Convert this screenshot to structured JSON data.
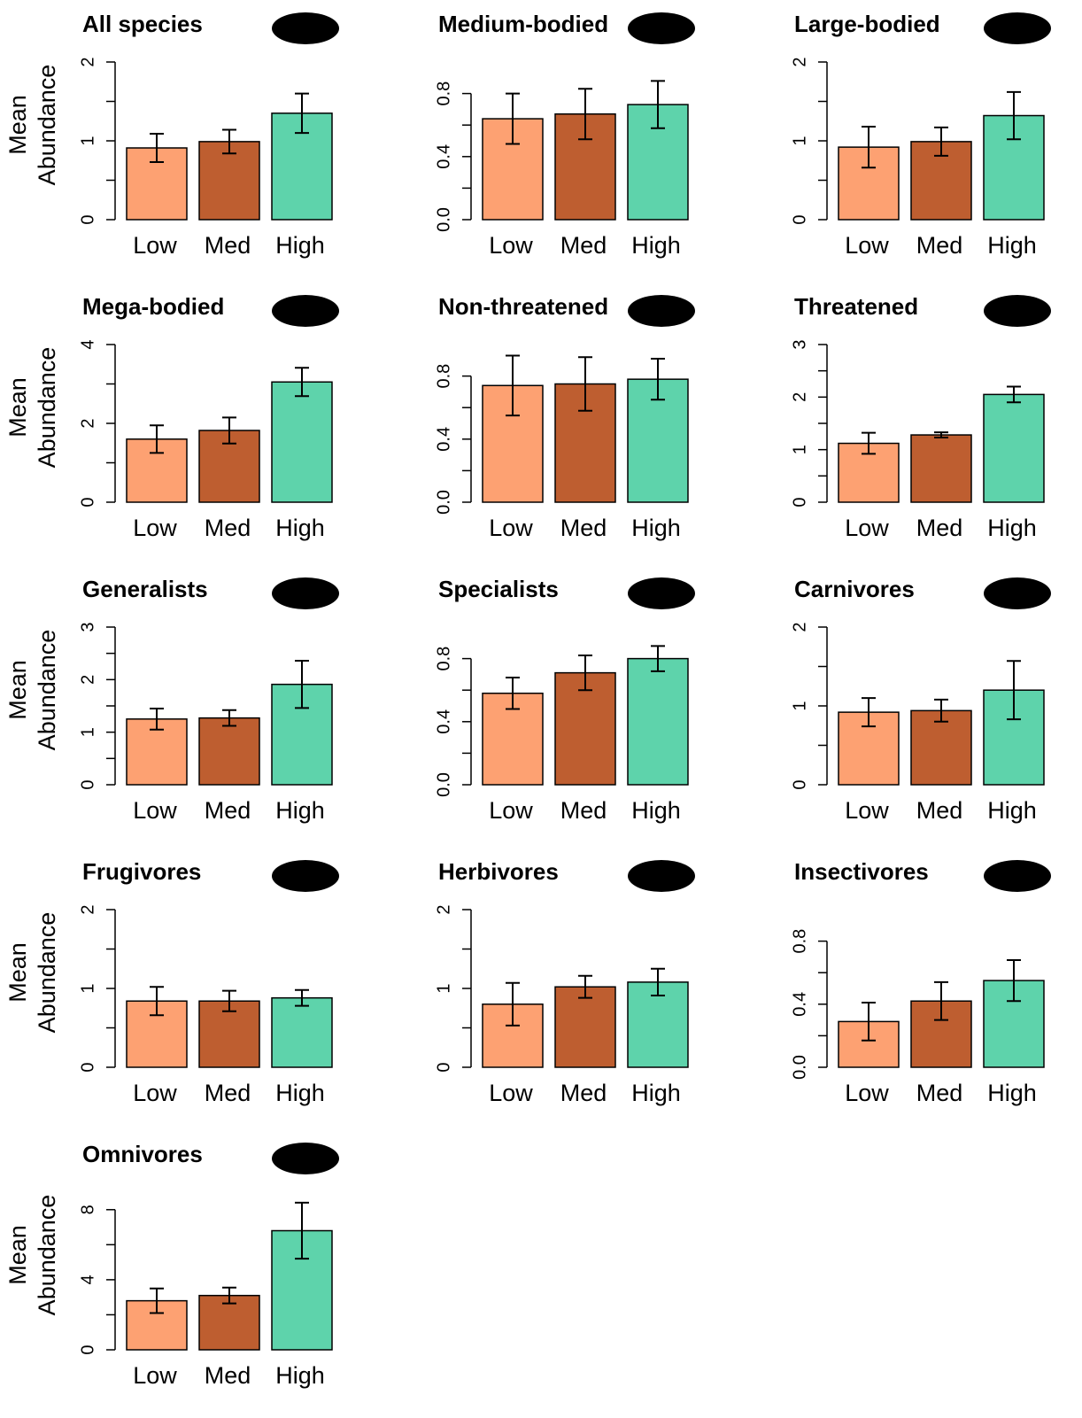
{
  "chart_data": [
    {
      "type": "bar",
      "title": "All species",
      "ylabel": [
        "Mean",
        "Abundance"
      ],
      "categories": [
        "Low",
        "Med",
        "High"
      ],
      "colors": [
        "#FDA172",
        "#BE5E30",
        "#5ED3AB"
      ],
      "values": [
        0.91,
        0.99,
        1.35
      ],
      "errors": [
        0.18,
        0.15,
        0.25
      ],
      "ylim": [
        0,
        2
      ],
      "yticks": [
        0,
        1,
        2
      ],
      "yminorticks": [
        0.5,
        1.5
      ]
    },
    {
      "type": "bar",
      "title": "Medium-bodied",
      "categories": [
        "Low",
        "Med",
        "High"
      ],
      "colors": [
        "#FDA172",
        "#BE5E30",
        "#5ED3AB"
      ],
      "values": [
        0.64,
        0.67,
        0.73
      ],
      "errors": [
        0.16,
        0.16,
        0.15
      ],
      "ylim": [
        0,
        1.0
      ],
      "yticks": [
        {
          "value": 0,
          "label": "0.0"
        },
        0.4,
        0.8
      ],
      "yminorticks": [
        0.2,
        0.6
      ]
    },
    {
      "type": "bar",
      "title": "Large-bodied",
      "categories": [
        "Low",
        "Med",
        "High"
      ],
      "colors": [
        "#FDA172",
        "#BE5E30",
        "#5ED3AB"
      ],
      "values": [
        0.92,
        0.99,
        1.32
      ],
      "errors": [
        0.26,
        0.18,
        0.3
      ],
      "ylim": [
        0,
        2
      ],
      "yticks": [
        0,
        1,
        2
      ],
      "yminorticks": [
        0.5,
        1.5
      ]
    },
    {
      "type": "bar",
      "title": "Mega-bodied",
      "ylabel": [
        "Mean",
        "Abundance"
      ],
      "categories": [
        "Low",
        "Med",
        "High"
      ],
      "colors": [
        "#FDA172",
        "#BE5E30",
        "#5ED3AB"
      ],
      "values": [
        1.6,
        1.82,
        3.05
      ],
      "errors": [
        0.35,
        0.33,
        0.36
      ],
      "ylim": [
        0,
        4
      ],
      "yticks": [
        0,
        2,
        4
      ],
      "yminorticks": [
        1,
        3
      ]
    },
    {
      "type": "bar",
      "title": "Non-threatened",
      "categories": [
        "Low",
        "Med",
        "High"
      ],
      "colors": [
        "#FDA172",
        "#BE5E30",
        "#5ED3AB"
      ],
      "values": [
        0.74,
        0.75,
        0.78
      ],
      "errors": [
        0.19,
        0.17,
        0.13
      ],
      "ylim": [
        0,
        1.0
      ],
      "yticks": [
        {
          "value": 0,
          "label": "0.0"
        },
        0.4,
        0.8
      ],
      "yminorticks": [
        0.2,
        0.6
      ]
    },
    {
      "type": "bar",
      "title": "Threatened",
      "categories": [
        "Low",
        "Med",
        "High"
      ],
      "colors": [
        "#FDA172",
        "#BE5E30",
        "#5ED3AB"
      ],
      "values": [
        1.12,
        1.28,
        2.05
      ],
      "errors": [
        0.2,
        0.05,
        0.15
      ],
      "ylim": [
        0,
        3
      ],
      "yticks": [
        0,
        1,
        2,
        3
      ],
      "yminorticks": [
        0.5,
        1.5,
        2.5
      ]
    },
    {
      "type": "bar",
      "title": "Generalists",
      "ylabel": [
        "Mean",
        "Abundance"
      ],
      "categories": [
        "Low",
        "Med",
        "High"
      ],
      "colors": [
        "#FDA172",
        "#BE5E30",
        "#5ED3AB"
      ],
      "values": [
        1.25,
        1.27,
        1.91
      ],
      "errors": [
        0.2,
        0.15,
        0.45
      ],
      "ylim": [
        0,
        3
      ],
      "yticks": [
        0,
        1,
        2,
        3
      ],
      "yminorticks": [
        0.5,
        1.5,
        2.5
      ]
    },
    {
      "type": "bar",
      "title": "Specialists",
      "categories": [
        "Low",
        "Med",
        "High"
      ],
      "colors": [
        "#FDA172",
        "#BE5E30",
        "#5ED3AB"
      ],
      "values": [
        0.58,
        0.71,
        0.8
      ],
      "errors": [
        0.1,
        0.11,
        0.08
      ],
      "ylim": [
        0,
        1.0
      ],
      "yticks": [
        {
          "value": 0,
          "label": "0.0"
        },
        0.4,
        0.8
      ],
      "yminorticks": [
        0.2,
        0.6
      ]
    },
    {
      "type": "bar",
      "title": "Carnivores",
      "categories": [
        "Low",
        "Med",
        "High"
      ],
      "colors": [
        "#FDA172",
        "#BE5E30",
        "#5ED3AB"
      ],
      "values": [
        0.92,
        0.94,
        1.2
      ],
      "errors": [
        0.18,
        0.14,
        0.37
      ],
      "ylim": [
        0,
        2
      ],
      "yticks": [
        0,
        1,
        2
      ],
      "yminorticks": [
        0.5,
        1.5
      ]
    },
    {
      "type": "bar",
      "title": "Frugivores",
      "ylabel": [
        "Mean",
        "Abundance"
      ],
      "categories": [
        "Low",
        "Med",
        "High"
      ],
      "colors": [
        "#FDA172",
        "#BE5E30",
        "#5ED3AB"
      ],
      "values": [
        0.84,
        0.84,
        0.88
      ],
      "errors": [
        0.18,
        0.13,
        0.1
      ],
      "ylim": [
        0,
        2
      ],
      "yticks": [
        0,
        1,
        2
      ],
      "yminorticks": [
        0.5,
        1.5
      ]
    },
    {
      "type": "bar",
      "title": "Herbivores",
      "categories": [
        "Low",
        "Med",
        "High"
      ],
      "colors": [
        "#FDA172",
        "#BE5E30",
        "#5ED3AB"
      ],
      "values": [
        0.8,
        1.02,
        1.08
      ],
      "errors": [
        0.27,
        0.14,
        0.17
      ],
      "ylim": [
        0,
        2
      ],
      "yticks": [
        0,
        1,
        2
      ],
      "yminorticks": [
        0.5,
        1.5
      ]
    },
    {
      "type": "bar",
      "title": "Insectivores",
      "categories": [
        "Low",
        "Med",
        "High"
      ],
      "colors": [
        "#FDA172",
        "#BE5E30",
        "#5ED3AB"
      ],
      "values": [
        0.29,
        0.42,
        0.55
      ],
      "errors": [
        0.12,
        0.12,
        0.13
      ],
      "ylim": [
        0,
        1.0
      ],
      "yticks": [
        {
          "value": 0,
          "label": "0.0"
        },
        0.4,
        0.8
      ],
      "yminorticks": [
        0.2,
        0.6
      ]
    },
    {
      "type": "bar",
      "title": "Omnivores",
      "ylabel": [
        "Mean",
        "Abundance"
      ],
      "categories": [
        "Low",
        "Med",
        "High"
      ],
      "colors": [
        "#FDA172",
        "#BE5E30",
        "#5ED3AB"
      ],
      "values": [
        2.8,
        3.1,
        6.8
      ],
      "errors": [
        0.7,
        0.45,
        1.6
      ],
      "ylim": [
        0,
        9
      ],
      "yticks": [
        0,
        4,
        8
      ],
      "yminorticks": [
        2,
        6
      ]
    }
  ]
}
